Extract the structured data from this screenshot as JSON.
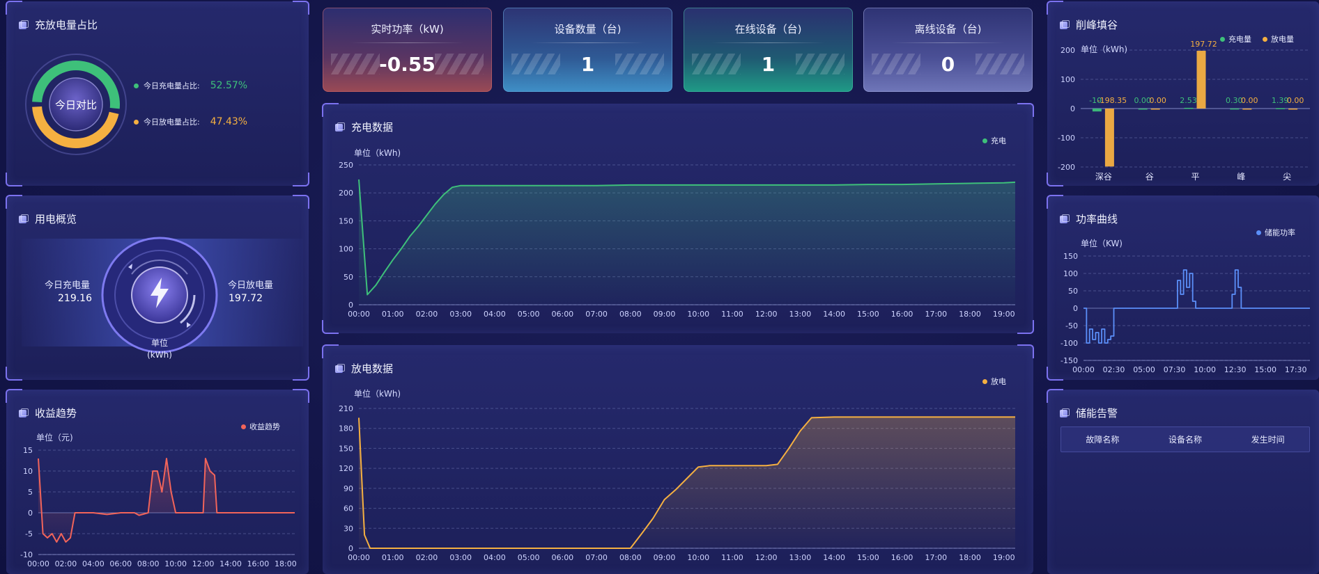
{
  "cards": [
    {
      "label": "实时功率（kW)",
      "value": "-0.55",
      "color": "#b14e57"
    },
    {
      "label": "设备数量（台)",
      "value": "1",
      "color": "#3f8fc6"
    },
    {
      "label": "在线设备（台)",
      "value": "1",
      "color": "#1f9a86"
    },
    {
      "label": "离线设备（台)",
      "value": "0",
      "color": "#6f76b8"
    }
  ],
  "ratio": {
    "title": "充放电量占比",
    "center_label": "今日对比",
    "charge_label": "今日充电量占比:",
    "charge_value": "52.57%",
    "discharge_label": "今日放电量占比:",
    "discharge_value": "47.43%",
    "charge_fraction": 0.5257,
    "charge_color": "#3ec07a",
    "discharge_color": "#f5b041"
  },
  "overview": {
    "title": "用电概览",
    "charge_label": "今日充电量",
    "charge_value": "219.16",
    "discharge_label": "今日放电量",
    "discharge_value": "197.72",
    "unit": "单位\n(kWh)",
    "icon": "lightning-icon"
  },
  "income": {
    "title": "收益趋势",
    "unit": "单位（元)",
    "legend": "收益趋势",
    "color": "#f2645a"
  },
  "charge_panel": {
    "title": "充电数据",
    "unit": "单位（kWh)",
    "legend": "充电",
    "color": "#3ec07a"
  },
  "discharge_panel": {
    "title": "放电数据",
    "unit": "单位（kWh)",
    "legend": "放电",
    "color": "#f5b041"
  },
  "peak_panel": {
    "title": "削峰填谷",
    "unit": "单位（kWh)",
    "legend_charge": "充电量",
    "legend_discharge": "放电量"
  },
  "power_panel": {
    "title": "功率曲线",
    "unit": "单位（KW)",
    "legend": "储能功率",
    "color": "#5b8ff9"
  },
  "alarm_panel": {
    "title": "储能告警",
    "columns": [
      "故障名称",
      "设备名称",
      "发生时间"
    ]
  },
  "chart_data": [
    {
      "id": "ratio",
      "type": "pie",
      "categories": [
        "今日充电量占比",
        "今日放电量占比"
      ],
      "values": [
        52.57,
        47.43
      ]
    },
    {
      "id": "charge",
      "type": "area",
      "x": [
        "00:00",
        "00:15",
        "00:30",
        "00:45",
        "01:00",
        "01:15",
        "01:30",
        "01:45",
        "02:00",
        "02:15",
        "02:30",
        "02:45",
        "03:00",
        "04:00",
        "05:00",
        "06:00",
        "07:00",
        "08:00",
        "09:00",
        "10:00",
        "11:00",
        "12:00",
        "13:00",
        "14:00",
        "15:00",
        "16:00",
        "17:00",
        "18:00",
        "19:00",
        "19:20"
      ],
      "series": [
        {
          "name": "充电",
          "values": [
            224,
            18,
            35,
            58,
            80,
            100,
            122,
            140,
            160,
            180,
            197,
            210,
            213,
            213,
            213,
            213,
            213,
            214,
            214,
            214,
            214,
            214,
            214,
            214,
            215,
            215,
            216,
            217,
            218,
            219
          ]
        }
      ],
      "xticks": [
        "00:00",
        "01:00",
        "02:00",
        "03:00",
        "04:00",
        "05:00",
        "06:00",
        "07:00",
        "08:00",
        "09:00",
        "10:00",
        "11:00",
        "12:00",
        "13:00",
        "14:00",
        "15:00",
        "16:00",
        "17:00",
        "18:00",
        "19:00"
      ],
      "ylim": [
        0,
        250
      ],
      "yticks": [
        0,
        50,
        100,
        150,
        200,
        250
      ]
    },
    {
      "id": "discharge",
      "type": "area",
      "x": [
        "00:00",
        "00:10",
        "00:20",
        "01:00",
        "04:00",
        "07:00",
        "08:00",
        "08:20",
        "08:40",
        "09:00",
        "09:20",
        "09:40",
        "10:00",
        "10:20",
        "11:00",
        "12:00",
        "12:20",
        "12:40",
        "13:00",
        "13:20",
        "14:00",
        "16:00",
        "18:00",
        "19:20"
      ],
      "series": [
        {
          "name": "放电",
          "values": [
            196,
            20,
            0,
            0,
            0,
            0,
            0,
            22,
            45,
            73,
            88,
            105,
            122,
            124,
            124,
            124,
            126,
            150,
            176,
            196,
            197,
            197,
            197,
            197
          ]
        }
      ],
      "xticks": [
        "00:00",
        "01:00",
        "02:00",
        "03:00",
        "04:00",
        "05:00",
        "06:00",
        "07:00",
        "08:00",
        "09:00",
        "10:00",
        "11:00",
        "12:00",
        "13:00",
        "14:00",
        "15:00",
        "16:00",
        "17:00",
        "18:00",
        "19:00"
      ],
      "ylim": [
        0,
        210
      ],
      "yticks": [
        0,
        30,
        60,
        90,
        120,
        150,
        180,
        210
      ]
    },
    {
      "id": "peak",
      "type": "bar",
      "categories": [
        "深谷",
        "谷",
        "平",
        "峰",
        "尖"
      ],
      "series": [
        {
          "name": "充电量",
          "values": [
            -10,
            0,
            2.53,
            0.3,
            1.39
          ],
          "labels": [
            "-10.",
            "0.00",
            "2.53",
            "0.30",
            "1.39"
          ]
        },
        {
          "name": "放电量",
          "values": [
            -198.35,
            0,
            197.72,
            0,
            0
          ],
          "labels": [
            "-198.35",
            "0.00",
            "197.72",
            "0.00",
            "0.00"
          ]
        }
      ],
      "ylim": [
        -200,
        200
      ],
      "yticks": [
        -200,
        -100,
        0,
        100,
        200
      ]
    },
    {
      "id": "power",
      "type": "line",
      "x": [
        "00:00",
        "00:15",
        "00:30",
        "00:45",
        "01:00",
        "01:15",
        "01:30",
        "01:45",
        "02:00",
        "02:15",
        "02:30",
        "03:00",
        "05:00",
        "07:00",
        "07:30",
        "07:45",
        "08:00",
        "08:15",
        "08:30",
        "08:45",
        "09:00",
        "09:15",
        "10:00",
        "12:00",
        "12:15",
        "12:30",
        "12:45",
        "13:00",
        "13:15",
        "15:00",
        "17:30",
        "18:40"
      ],
      "series": [
        {
          "name": "储能功率",
          "values": [
            0,
            -100,
            -60,
            -90,
            -70,
            -100,
            -60,
            -100,
            -90,
            -80,
            0,
            0,
            0,
            0,
            0,
            80,
            40,
            110,
            60,
            100,
            20,
            0,
            0,
            0,
            40,
            110,
            60,
            0,
            0,
            0,
            0,
            0
          ]
        }
      ],
      "xticks": [
        "00:00",
        "02:30",
        "05:00",
        "07:30",
        "10:00",
        "12:30",
        "15:00",
        "17:30"
      ],
      "ylim": [
        -150,
        150
      ],
      "yticks": [
        -150,
        -100,
        -50,
        0,
        50,
        100,
        150
      ]
    },
    {
      "id": "income",
      "type": "line",
      "x": [
        "00:00",
        "00:20",
        "00:40",
        "01:00",
        "01:20",
        "01:40",
        "02:00",
        "02:20",
        "02:40",
        "03:00",
        "04:00",
        "05:00",
        "06:00",
        "07:00",
        "07:20",
        "08:00",
        "08:20",
        "08:40",
        "09:00",
        "09:20",
        "09:40",
        "10:00",
        "11:00",
        "12:00",
        "12:10",
        "12:30",
        "12:50",
        "13:00",
        "14:00",
        "16:00",
        "18:00",
        "18:40"
      ],
      "series": [
        {
          "name": "收益趋势",
          "values": [
            13,
            -5,
            -6,
            -5,
            -7,
            -5,
            -7,
            -6,
            0,
            0,
            0,
            -0.4,
            0,
            0,
            -0.6,
            0,
            10,
            10,
            5,
            13,
            5,
            0,
            0,
            0,
            13,
            10,
            9,
            0,
            0,
            0,
            0,
            0
          ]
        }
      ],
      "xticks": [
        "00:00",
        "02:00",
        "04:00",
        "06:00",
        "08:00",
        "10:00",
        "12:00",
        "14:00",
        "16:00",
        "18:00"
      ],
      "ylim": [
        -10,
        15
      ],
      "yticks": [
        -10,
        -5,
        0,
        5,
        10,
        15
      ]
    }
  ]
}
